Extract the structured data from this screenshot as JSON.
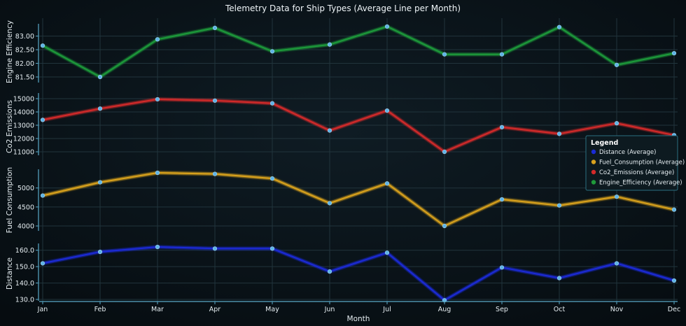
{
  "chart_data": {
    "type": "line",
    "title": "Telemetry Data for Ship Types (Average Line per Month)",
    "xlabel": "Month",
    "categories": [
      "Jan",
      "Feb",
      "Mar",
      "Apr",
      "May",
      "Jun",
      "Jul",
      "Aug",
      "Sep",
      "Oct",
      "Nov",
      "Dec"
    ],
    "grid": true,
    "legend": {
      "title": "Legend",
      "placement": "right",
      "entries": [
        {
          "label": "Distance (Average)",
          "color": "#1a2bd6"
        },
        {
          "label": "Fuel_Consumption (Average)",
          "color": "#d9a21e"
        },
        {
          "label": "Co2_Emissions (Average)",
          "color": "#d42a2a"
        },
        {
          "label": "Engine_Efficiency (Average)",
          "color": "#1f9a3a"
        }
      ]
    },
    "panels": [
      {
        "key": "engine",
        "ylabel": "Engine Efficiency",
        "color": "#1f9a3a",
        "ylim": [
          81.5,
          83.4
        ],
        "ticks": [
          81.5,
          82.0,
          82.5,
          83.0
        ],
        "tick_labels": [
          "81.50",
          "82.00",
          "82.50",
          "83.00"
        ],
        "values": [
          82.65,
          81.5,
          82.88,
          83.3,
          82.44,
          82.69,
          83.35,
          82.33,
          82.33,
          83.33,
          81.94,
          82.37
        ]
      },
      {
        "key": "co2",
        "ylabel": "Co2 Emissions",
        "color": "#d42a2a",
        "ylim": [
          11000,
          15000
        ],
        "ticks": [
          11000,
          12000,
          13000,
          14000,
          15000
        ],
        "tick_labels": [
          "11000",
          "12000",
          "13000",
          "14000",
          "15000"
        ],
        "values": [
          13400,
          14250,
          14950,
          14850,
          14650,
          12600,
          14100,
          11000,
          12850,
          12350,
          13150,
          12250
        ]
      },
      {
        "key": "fuel",
        "ylabel": "Fuel Consumption",
        "color": "#d9a21e",
        "ylim": [
          4000,
          5400
        ],
        "ticks": [
          4000,
          4500,
          5000
        ],
        "tick_labels": [
          "4000",
          "4500",
          "5000"
        ],
        "values": [
          4800,
          5150,
          5400,
          5370,
          5250,
          4600,
          5120,
          4000,
          4700,
          4540,
          4770,
          4430
        ]
      },
      {
        "key": "distance",
        "ylabel": "Distance",
        "color": "#1a2bd6",
        "ylim": [
          130,
          162
        ],
        "ticks": [
          130,
          140,
          150,
          160
        ],
        "tick_labels": [
          "130.0",
          "140.0",
          "150.0",
          "160.0"
        ],
        "values": [
          152,
          159,
          162,
          161,
          161,
          147,
          158.5,
          129.5,
          149.5,
          143,
          152,
          141.5
        ]
      }
    ]
  }
}
